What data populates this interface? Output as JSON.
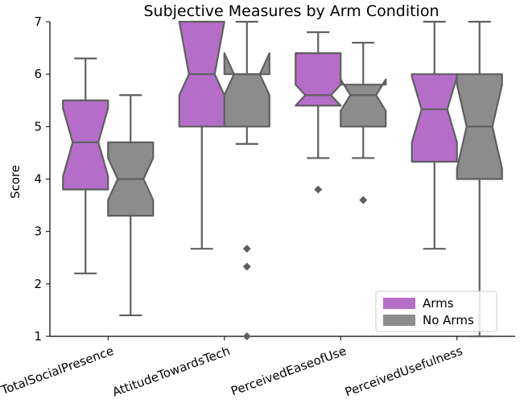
{
  "chart_data": {
    "type": "boxplot",
    "title": "Subjective Measures by Arm Condition",
    "ylabel": "Score",
    "xlabel": "",
    "ylim": [
      1,
      7
    ],
    "yticks": [
      1,
      2,
      3,
      4,
      5,
      6,
      7
    ],
    "categories": [
      "TotalSocialPresence",
      "AttitudeTowardsTech",
      "PerceivedEaseofUse",
      "PerceivedUsefulness"
    ],
    "notched": true,
    "legend_position": "lower-right",
    "series": [
      {
        "name": "Arms",
        "color": "#b46ec8",
        "boxes": [
          {
            "whislo": 2.2,
            "q1": 3.8,
            "med": 4.7,
            "q3": 5.5,
            "whishi": 6.3,
            "notch_lo": 4.05,
            "notch_hi": 5.35,
            "fliers": []
          },
          {
            "whislo": 2.67,
            "q1": 5.0,
            "med": 6.0,
            "q3": 7.0,
            "whishi": 7.0,
            "notch_lo": 5.6,
            "notch_hi": 7.0,
            "fliers": []
          },
          {
            "whislo": 4.4,
            "q1": 5.4,
            "med": 5.6,
            "q3": 6.4,
            "whishi": 6.8,
            "notch_lo": 5.4,
            "notch_hi": 5.8,
            "fliers": [
              3.8
            ]
          },
          {
            "whislo": 2.67,
            "q1": 4.33,
            "med": 5.33,
            "q3": 6.0,
            "whishi": 7.0,
            "notch_lo": 4.7,
            "notch_hi": 5.95,
            "fliers": []
          }
        ]
      },
      {
        "name": "No Arms",
        "color": "#8c8c8c",
        "boxes": [
          {
            "whislo": 1.4,
            "q1": 3.3,
            "med": 4.0,
            "q3": 4.7,
            "whishi": 5.6,
            "notch_lo": 3.6,
            "notch_hi": 4.4,
            "fliers": []
          },
          {
            "whislo": 4.67,
            "q1": 5.0,
            "med": 6.0,
            "q3": 6.0,
            "whishi": 7.0,
            "notch_lo": 5.6,
            "notch_hi": 6.4,
            "fliers": [
              2.67,
              2.33,
              1.0
            ]
          },
          {
            "whislo": 4.4,
            "q1": 5.0,
            "med": 5.6,
            "q3": 5.8,
            "whishi": 6.6,
            "notch_lo": 5.3,
            "notch_hi": 5.9,
            "fliers": [
              3.6
            ]
          },
          {
            "whislo": 1.0,
            "q1": 4.0,
            "med": 5.0,
            "q3": 6.0,
            "whishi": 7.0,
            "notch_lo": 4.2,
            "notch_hi": 5.8,
            "fliers": []
          }
        ]
      }
    ]
  }
}
